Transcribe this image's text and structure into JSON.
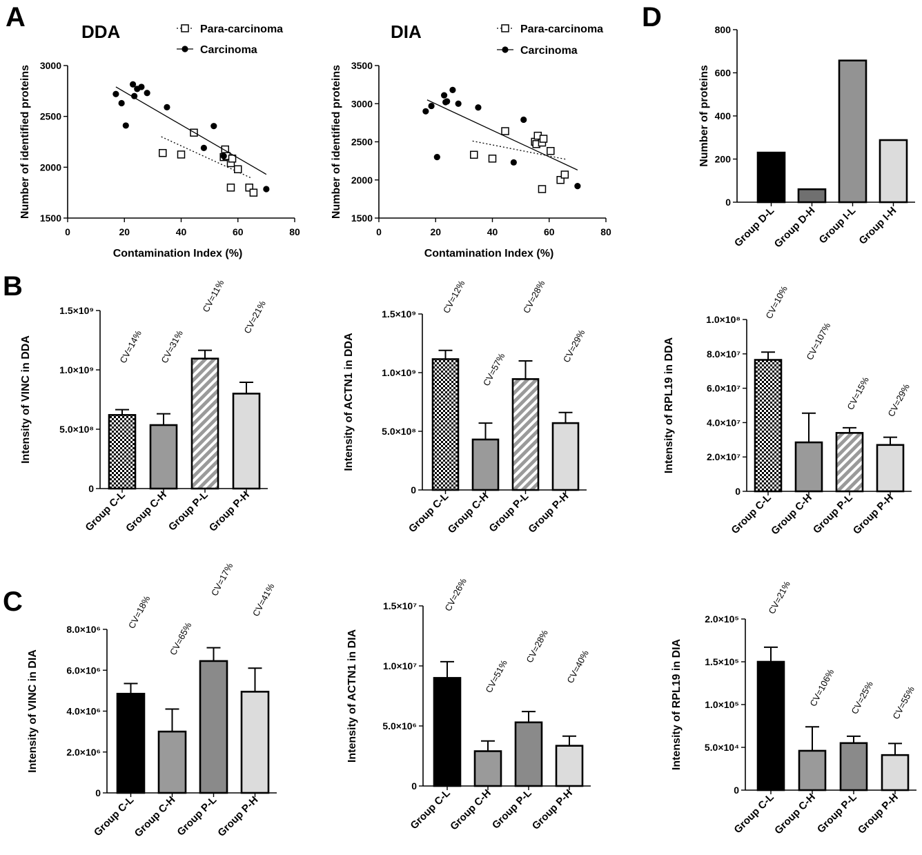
{
  "panels": {
    "A": "A",
    "B": "B",
    "C": "C",
    "D": "D"
  },
  "chart_data": [
    {
      "id": "A-DDA",
      "type": "scatter",
      "title": "DDA",
      "xlabel": "Contamination Index (%)",
      "ylabel": "Number of identified proteins",
      "xlim": [
        0,
        80
      ],
      "ylim": [
        1500,
        3000
      ],
      "xticks": [
        0,
        20,
        40,
        60,
        80
      ],
      "yticks": [
        1500,
        2000,
        2500,
        3000
      ],
      "legend_position": "top",
      "series": [
        {
          "name": "Para-carcinoma",
          "marker": "open-square",
          "line": "dotted",
          "points": [
            [
              33.5,
              2140
            ],
            [
              40,
              2125
            ],
            [
              44.5,
              2340
            ],
            [
              55,
              2100
            ],
            [
              55.5,
              2175
            ],
            [
              56,
              2110
            ],
            [
              57.5,
              2040
            ],
            [
              57.5,
              1800
            ],
            [
              58,
              2085
            ],
            [
              60,
              1980
            ],
            [
              64,
              1800
            ],
            [
              65.5,
              1750
            ]
          ],
          "fit": [
            [
              33,
              2300
            ],
            [
              65,
              1890
            ]
          ]
        },
        {
          "name": "Carcinoma",
          "marker": "filled-circle",
          "line": "solid",
          "points": [
            [
              17,
              2720
            ],
            [
              19,
              2630
            ],
            [
              20.5,
              2410
            ],
            [
              23,
              2815
            ],
            [
              23.5,
              2700
            ],
            [
              24.5,
              2770
            ],
            [
              26,
              2790
            ],
            [
              28,
              2730
            ],
            [
              35,
              2590
            ],
            [
              48,
              2190
            ],
            [
              51.5,
              2405
            ],
            [
              55,
              2110
            ],
            [
              70,
              1785
            ]
          ],
          "fit": [
            [
              17,
              2790
            ],
            [
              70,
              1930
            ]
          ]
        }
      ]
    },
    {
      "id": "A-DIA",
      "type": "scatter",
      "title": "DIA",
      "xlabel": "Contamination Index (%)",
      "ylabel": "Number of identified proteins",
      "xlim": [
        0,
        80
      ],
      "ylim": [
        1500,
        3500
      ],
      "xticks": [
        0,
        20,
        40,
        60,
        80
      ],
      "yticks": [
        1500,
        2000,
        2500,
        3000,
        3500
      ],
      "legend_position": "top",
      "series": [
        {
          "name": "Para-carcinoma",
          "marker": "open-square",
          "line": "dotted",
          "points": [
            [
              33.5,
              2330
            ],
            [
              40,
              2280
            ],
            [
              44.5,
              2640
            ],
            [
              55,
              2500
            ],
            [
              55.5,
              2470
            ],
            [
              56,
              2580
            ],
            [
              57.5,
              2490
            ],
            [
              57.5,
              1880
            ],
            [
              58,
              2540
            ],
            [
              60.5,
              2380
            ],
            [
              64,
              2000
            ],
            [
              65.5,
              2070
            ]
          ],
          "fit": [
            [
              33,
              2510
            ],
            [
              66,
              2270
            ]
          ]
        },
        {
          "name": "Carcinoma",
          "marker": "filled-circle",
          "line": "solid",
          "points": [
            [
              16.5,
              2900
            ],
            [
              18.5,
              2970
            ],
            [
              20.5,
              2300
            ],
            [
              23,
              3110
            ],
            [
              23.5,
              3020
            ],
            [
              24,
              3030
            ],
            [
              26,
              3180
            ],
            [
              28,
              3000
            ],
            [
              35,
              2950
            ],
            [
              47.5,
              2230
            ],
            [
              51,
              2790
            ],
            [
              70,
              1920
            ]
          ],
          "fit": [
            [
              17,
              3050
            ],
            [
              70,
              2130
            ]
          ]
        }
      ]
    },
    {
      "id": "D",
      "type": "bar",
      "title": "",
      "ylabel": "Number of proteins",
      "ylim": [
        0,
        800
      ],
      "yticks": [
        0,
        200,
        400,
        600,
        800
      ],
      "categories": [
        "Group D-L",
        "Group D-H",
        "Group I-L",
        "Group I-H"
      ],
      "values": [
        230,
        60,
        657,
        288
      ],
      "colors": [
        "#000000",
        "#707070",
        "#939393",
        "#dcdcdc"
      ]
    },
    {
      "id": "B-VINC",
      "type": "bar",
      "title": "",
      "ylabel": "Intensity of VINC in DDA",
      "ylim": [
        0,
        1500000000
      ],
      "ytick_values": [
        0,
        500000000,
        1000000000,
        1500000000
      ],
      "ytick_labels": [
        "0",
        "5.0×10⁸",
        "1.0×10⁹",
        "1.5×10⁹"
      ],
      "categories": [
        "Group C-L",
        "Group C-H",
        "Group P-L",
        "Group P-H"
      ],
      "values": [
        620000000,
        535000000,
        1095000000,
        800000000
      ],
      "errors": [
        45000000,
        95000000,
        70000000,
        95000000
      ],
      "cv_labels": [
        "CV=14%",
        "CV=31%",
        "CV=11%",
        "CV=21%"
      ],
      "cv_values": [
        1050000000,
        1050000000,
        1480000000,
        1300000000
      ],
      "fills": [
        "check",
        "#9a9a9a",
        "stripe",
        "#dcdcdc"
      ]
    },
    {
      "id": "B-ACTN1",
      "type": "bar",
      "title": "",
      "ylabel": "Intensity of ACTN1 in DDA",
      "ylim": [
        0,
        1500000000
      ],
      "ytick_values": [
        0,
        500000000,
        1000000000,
        1500000000
      ],
      "ytick_labels": [
        "0",
        "5.0×10⁸",
        "1.0×10⁹",
        "1.5×10⁹"
      ],
      "categories": [
        "Group C-L",
        "Group C-H",
        "Group P-L",
        "Group P-H"
      ],
      "values": [
        1115000000,
        430000000,
        945000000,
        570000000
      ],
      "errors": [
        75000000,
        140000000,
        155000000,
        90000000
      ],
      "cv_labels": [
        "CV=12%",
        "CV=57%",
        "CV=28%",
        "CV=29%"
      ],
      "cv_values": [
        1500000000,
        880000000,
        1500000000,
        1080000000
      ],
      "fills": [
        "check",
        "#9a9a9a",
        "stripe",
        "#dcdcdc"
      ]
    },
    {
      "id": "B-RPL19",
      "type": "bar",
      "title": "",
      "ylabel": "Intensity of RPL19 in DDA",
      "ylim": [
        0,
        100000000
      ],
      "ytick_values": [
        0,
        20000000,
        40000000,
        60000000,
        80000000,
        100000000
      ],
      "ytick_labels": [
        "0",
        "2.0×10⁷",
        "4.0×10⁷",
        "6.0×10⁷",
        "8.0×10⁷",
        "1.0×10⁸"
      ],
      "categories": [
        "Group C-L",
        "Group C-H",
        "Group P-L",
        "Group P-H"
      ],
      "values": [
        76500000,
        28500000,
        34000000,
        27000000
      ],
      "errors": [
        4500000,
        17000000,
        3000000,
        4500000
      ],
      "cv_labels": [
        "CV=10%",
        "CV=107%",
        "CV=15%",
        "CV=29%"
      ],
      "cv_values": [
        100000000,
        76000000,
        47000000,
        43000000
      ],
      "fills": [
        "check",
        "#9a9a9a",
        "stripe",
        "#dcdcdc"
      ]
    },
    {
      "id": "C-VINC",
      "type": "bar",
      "title": "",
      "ylabel": "Intensity of VINC in DIA",
      "ylim": [
        0,
        8000000
      ],
      "ytick_values": [
        0,
        2000000,
        4000000,
        6000000,
        8000000
      ],
      "ytick_labels": [
        "0",
        "2.0×10⁶",
        "4.0×10⁶",
        "6.0×10⁶",
        "8.0×10⁶"
      ],
      "categories": [
        "Group C-L",
        "Group C-H",
        "Group P-L",
        "Group P-H"
      ],
      "values": [
        4850000,
        3000000,
        6450000,
        4950000
      ],
      "errors": [
        500000,
        1100000,
        650000,
        1150000
      ],
      "cv_labels": [
        "CV=18%",
        "CV=65%",
        "CV=17%",
        "CV=41%"
      ],
      "cv_values": [
        8000000,
        6700000,
        9600000,
        8600000
      ],
      "fills": [
        "#000000",
        "#9a9a9a",
        "#8a8a8a",
        "#dcdcdc"
      ]
    },
    {
      "id": "C-ACTN1",
      "type": "bar",
      "title": "",
      "ylabel": "Intensity of ACTN1 in DIA",
      "ylim": [
        0,
        15000000
      ],
      "ytick_values": [
        0,
        5000000,
        10000000,
        15000000
      ],
      "ytick_labels": [
        "0",
        "5.0×10⁶",
        "1.0×10⁷",
        "1.5×10⁷"
      ],
      "categories": [
        "Group C-L",
        "Group C-H",
        "Group P-L",
        "Group P-H"
      ],
      "values": [
        9000000,
        2900000,
        5300000,
        3350000
      ],
      "errors": [
        1350000,
        850000,
        900000,
        800000
      ],
      "cv_labels": [
        "CV=26%",
        "CV=51%",
        "CV=28%",
        "CV=40%"
      ],
      "cv_values": [
        14500000,
        7700000,
        10200000,
        8500000
      ],
      "fills": [
        "#000000",
        "#9a9a9a",
        "#8a8a8a",
        "#dcdcdc"
      ]
    },
    {
      "id": "C-RPL19",
      "type": "bar",
      "title": "",
      "ylabel": "Intensity of RPL19 in DIA",
      "ylim": [
        0,
        200000
      ],
      "ytick_values": [
        0,
        50000,
        100000,
        150000,
        200000
      ],
      "ytick_labels": [
        "0",
        "5.0×10⁴",
        "1.0×10⁵",
        "1.5×10⁵",
        "2.0×10⁵"
      ],
      "categories": [
        "Group C-L",
        "Group C-H",
        "Group P-L",
        "Group P-H"
      ],
      "values": [
        150000,
        46000,
        55000,
        41000
      ],
      "errors": [
        17000,
        28000,
        8000,
        13500
      ],
      "cv_labels": [
        "CV=21%",
        "CV=106%",
        "CV=25%",
        "CV=55%"
      ],
      "cv_values": [
        205000,
        97000,
        88000,
        82000
      ],
      "fills": [
        "#000000",
        "#9a9a9a",
        "#8a8a8a",
        "#dcdcdc"
      ]
    }
  ]
}
